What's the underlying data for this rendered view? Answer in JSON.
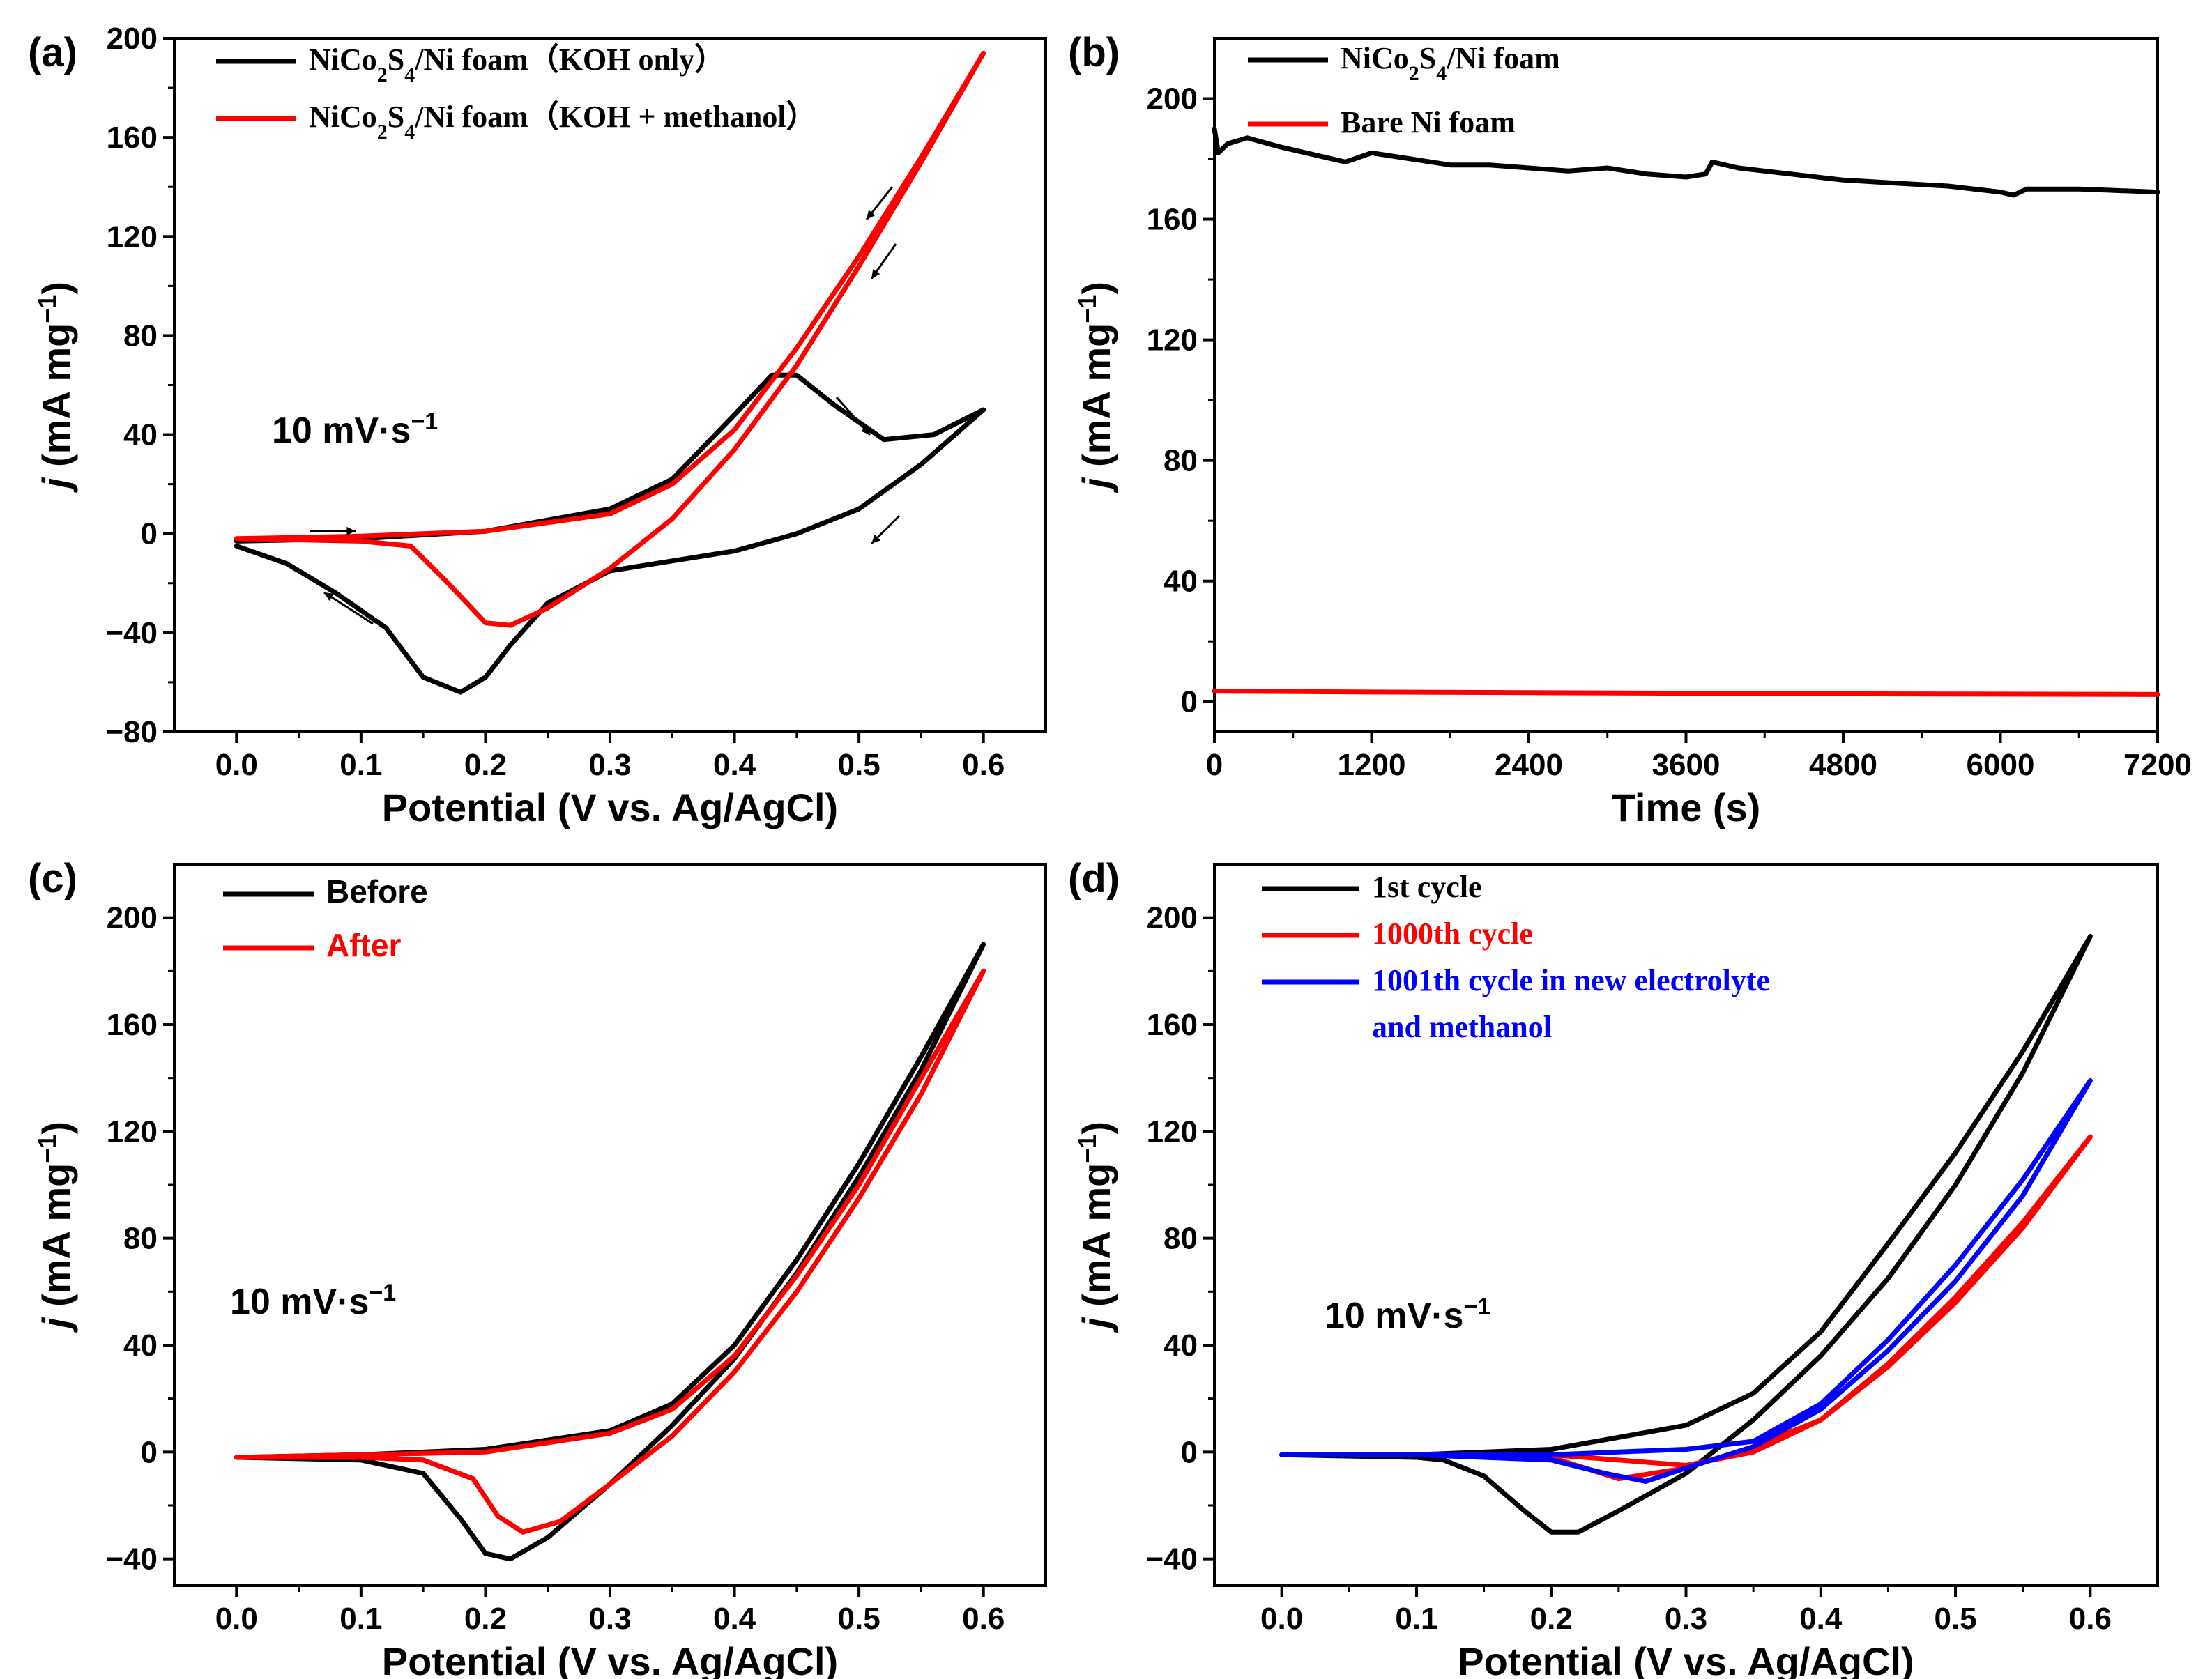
{
  "figure": {
    "panels": [
      {
        "label": "(a)",
        "xlabel": "Potential (V vs. Ag/AgCl)",
        "ylabel_j": "j",
        "ylabel_rest": " (mA mg",
        "ylabel_sup": "−1",
        "ylabel_close": ")",
        "rate_label": "10 mV·s",
        "rate_sup": "−1",
        "xticks": [
          "0.0",
          "0.1",
          "0.2",
          "0.3",
          "0.4",
          "0.5",
          "0.6"
        ],
        "yticks": [
          "−80",
          "−40",
          "0",
          "40",
          "80",
          "120",
          "160",
          "200"
        ],
        "legend": [
          {
            "text": "NiCo2S4/Ni foam（KOH only）",
            "color": "#000000"
          },
          {
            "text": "NiCo2S4/Ni foam（KOH + methanol）",
            "color": "#ff0000"
          }
        ]
      },
      {
        "label": "(b)",
        "xlabel": "Time (s)",
        "ylabel_j": "j",
        "ylabel_rest": " (mA mg",
        "ylabel_sup": "−1",
        "ylabel_close": ")",
        "xticks": [
          "0",
          "1200",
          "2400",
          "3600",
          "4800",
          "6000",
          "7200"
        ],
        "yticks": [
          "0",
          "40",
          "80",
          "120",
          "160",
          "200"
        ],
        "legend": [
          {
            "text": "NiCo2S4/Ni foam",
            "color": "#000000"
          },
          {
            "text": "Bare Ni foam",
            "color": "#ff0000"
          }
        ]
      },
      {
        "label": "(c)",
        "xlabel": "Potential (V vs. Ag/AgCl)",
        "ylabel_j": "j",
        "ylabel_rest": " (mA mg",
        "ylabel_sup": "−1",
        "ylabel_close": ")",
        "rate_label": "10 mV·s",
        "rate_sup": "−1",
        "xticks": [
          "0.0",
          "0.1",
          "0.2",
          "0.3",
          "0.4",
          "0.5",
          "0.6"
        ],
        "yticks": [
          "−40",
          "0",
          "40",
          "80",
          "120",
          "160",
          "200"
        ],
        "legend": [
          {
            "text": "Before",
            "color": "#000000"
          },
          {
            "text": "After",
            "color": "#ff0000"
          }
        ]
      },
      {
        "label": "(d)",
        "xlabel": "Potential (V vs. Ag/AgCl)",
        "ylabel_j": "j",
        "ylabel_rest": " (mA mg",
        "ylabel_sup": "−1",
        "ylabel_close": ")",
        "rate_label": "10 mV·s",
        "rate_sup": "−1",
        "xticks": [
          "0.0",
          "0.1",
          "0.2",
          "0.3",
          "0.4",
          "0.5",
          "0.6"
        ],
        "yticks": [
          "−40",
          "0",
          "40",
          "80",
          "120",
          "160",
          "200"
        ],
        "legend": [
          {
            "text": "1st cycle",
            "color": "#000000"
          },
          {
            "text": "1000th cycle",
            "color": "#ff0000"
          },
          {
            "text": "1001th cycle in new electrolyte",
            "color": "#0000ff"
          },
          {
            "text": "and methanol",
            "color": "#0000ff"
          }
        ]
      }
    ]
  },
  "chart_data": [
    {
      "type": "line",
      "panel": "(a)",
      "xlabel": "Potential (V vs. Ag/AgCl)",
      "ylabel": "j (mA mg−1)",
      "xlim": [
        -0.05,
        0.65
      ],
      "ylim": [
        -80,
        200
      ],
      "annotation": "10 mV·s−1",
      "series": [
        {
          "name": "NiCo2S4/Ni foam（KOH only）",
          "color": "#000000",
          "x": [
            0.0,
            0.1,
            0.2,
            0.3,
            0.35,
            0.4,
            0.43,
            0.45,
            0.48,
            0.52,
            0.56,
            0.6,
            0.55,
            0.5,
            0.45,
            0.4,
            0.35,
            0.3,
            0.25,
            0.22,
            0.2,
            0.18,
            0.15,
            0.12,
            0.08,
            0.04,
            0.0
          ],
          "y": [
            -3,
            -2,
            1,
            10,
            22,
            48,
            64,
            64,
            52,
            38,
            40,
            50,
            28,
            10,
            0,
            -7,
            -11,
            -15,
            -28,
            -45,
            -58,
            -64,
            -58,
            -38,
            -24,
            -12,
            -5
          ]
        },
        {
          "name": "NiCo2S4/Ni foam（KOH + methanol）",
          "color": "#ff0000",
          "x": [
            0.0,
            0.1,
            0.2,
            0.3,
            0.35,
            0.4,
            0.45,
            0.5,
            0.55,
            0.6,
            0.55,
            0.5,
            0.45,
            0.4,
            0.35,
            0.3,
            0.25,
            0.22,
            0.2,
            0.17,
            0.14,
            0.1,
            0.0
          ],
          "y": [
            -2,
            -1,
            1,
            8,
            20,
            42,
            75,
            112,
            152,
            194,
            150,
            108,
            68,
            34,
            6,
            -14,
            -30,
            -37,
            -36,
            -20,
            -5,
            -3,
            -2
          ]
        }
      ]
    },
    {
      "type": "line",
      "panel": "(b)",
      "xlabel": "Time (s)",
      "ylabel": "j (mA mg−1)",
      "xlim": [
        0,
        7200
      ],
      "ylim": [
        -10,
        220
      ],
      "series": [
        {
          "name": "NiCo2S4/Ni foam",
          "color": "#000000",
          "x": [
            0,
            30,
            100,
            250,
            500,
            800,
            1000,
            1200,
            1500,
            1800,
            2100,
            2400,
            2700,
            3000,
            3300,
            3600,
            3750,
            3800,
            4000,
            4400,
            4800,
            5200,
            5600,
            6000,
            6100,
            6200,
            6600,
            7200
          ],
          "y": [
            190,
            182,
            185,
            187,
            184,
            181,
            179,
            182,
            180,
            178,
            178,
            177,
            176,
            177,
            175,
            174,
            175,
            179,
            177,
            175,
            173,
            172,
            171,
            169,
            168,
            170,
            170,
            169
          ]
        },
        {
          "name": "Bare Ni foam",
          "color": "#ff0000",
          "x": [
            0,
            1200,
            2400,
            3600,
            4800,
            6000,
            7200
          ],
          "y": [
            3.5,
            3.2,
            3.0,
            2.8,
            2.6,
            2.5,
            2.4
          ]
        }
      ]
    },
    {
      "type": "line",
      "panel": "(c)",
      "xlabel": "Potential (V vs. Ag/AgCl)",
      "ylabel": "j (mA mg−1)",
      "xlim": [
        -0.05,
        0.65
      ],
      "ylim": [
        -50,
        220
      ],
      "annotation": "10 mV·s−1",
      "series": [
        {
          "name": "Before",
          "color": "#000000",
          "x": [
            0.0,
            0.1,
            0.2,
            0.3,
            0.35,
            0.4,
            0.45,
            0.5,
            0.55,
            0.6,
            0.55,
            0.5,
            0.45,
            0.4,
            0.35,
            0.3,
            0.25,
            0.22,
            0.2,
            0.18,
            0.15,
            0.1,
            0.0
          ],
          "y": [
            -2,
            -1,
            1,
            8,
            18,
            40,
            72,
            108,
            148,
            190,
            143,
            103,
            67,
            35,
            10,
            -12,
            -32,
            -40,
            -38,
            -25,
            -8,
            -3,
            -2
          ]
        },
        {
          "name": "After",
          "color": "#ff0000",
          "x": [
            0.0,
            0.1,
            0.2,
            0.3,
            0.35,
            0.4,
            0.45,
            0.5,
            0.55,
            0.6,
            0.55,
            0.5,
            0.45,
            0.4,
            0.35,
            0.3,
            0.26,
            0.23,
            0.21,
            0.19,
            0.15,
            0.1,
            0.0
          ],
          "y": [
            -2,
            -1,
            0,
            7,
            16,
            36,
            66,
            100,
            140,
            180,
            134,
            95,
            60,
            30,
            6,
            -12,
            -26,
            -30,
            -24,
            -10,
            -3,
            -2,
            -2
          ]
        }
      ]
    },
    {
      "type": "line",
      "panel": "(d)",
      "xlabel": "Potential (V vs. Ag/AgCl)",
      "ylabel": "j (mA mg−1)",
      "xlim": [
        -0.05,
        0.65
      ],
      "ylim": [
        -50,
        220
      ],
      "annotation": "10 mV·s−1",
      "series": [
        {
          "name": "1st cycle",
          "color": "#000000",
          "x": [
            0.0,
            0.1,
            0.2,
            0.3,
            0.35,
            0.4,
            0.45,
            0.5,
            0.55,
            0.6,
            0.55,
            0.5,
            0.45,
            0.4,
            0.35,
            0.3,
            0.25,
            0.22,
            0.2,
            0.18,
            0.15,
            0.12,
            0.1,
            0.0
          ],
          "y": [
            -1,
            -1,
            1,
            10,
            22,
            45,
            78,
            112,
            150,
            193,
            142,
            100,
            65,
            36,
            12,
            -8,
            -22,
            -30,
            -30,
            -22,
            -9,
            -3,
            -2,
            -1
          ]
        },
        {
          "name": "1000th cycle",
          "color": "#ff0000",
          "x": [
            0.0,
            0.1,
            0.2,
            0.3,
            0.35,
            0.4,
            0.45,
            0.5,
            0.55,
            0.6,
            0.55,
            0.5,
            0.45,
            0.4,
            0.35,
            0.3,
            0.25,
            0.2,
            0.1,
            0.0
          ],
          "y": [
            -1,
            -1,
            -1,
            -5,
            0,
            12,
            33,
            58,
            86,
            118,
            84,
            56,
            32,
            12,
            2,
            -6,
            -10,
            -2,
            -1,
            -1
          ]
        },
        {
          "name": "1001th cycle in new electrolyte and methanol",
          "color": "#0000ff",
          "x": [
            0.0,
            0.1,
            0.2,
            0.25,
            0.3,
            0.35,
            0.4,
            0.45,
            0.5,
            0.55,
            0.6,
            0.55,
            0.5,
            0.45,
            0.4,
            0.35,
            0.3,
            0.27,
            0.24,
            0.2,
            0.1,
            0.0
          ],
          "y": [
            -1,
            -1,
            -1,
            0,
            1,
            4,
            18,
            42,
            70,
            102,
            139,
            96,
            64,
            38,
            16,
            2,
            -6,
            -11,
            -8,
            -3,
            -1,
            -1
          ]
        }
      ]
    }
  ]
}
